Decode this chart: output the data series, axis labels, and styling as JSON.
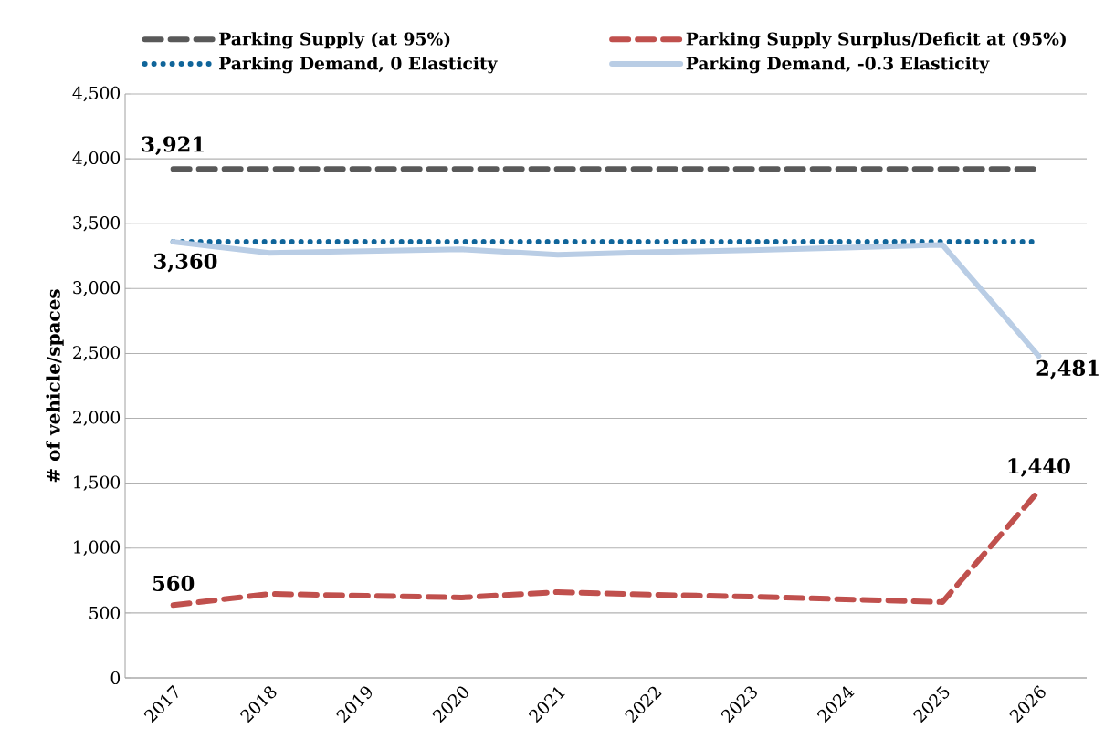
{
  "chart_data": {
    "type": "line",
    "ylabel": "# of vehicle/spaces",
    "categories": [
      "2017",
      "2018",
      "2019",
      "2020",
      "2021",
      "2022",
      "2023",
      "2024",
      "2025",
      "2026"
    ],
    "series": [
      {
        "name": "Parking Supply (at 95%)",
        "color": "#595959",
        "line_style": "dashed",
        "values": [
          3921,
          3921,
          3921,
          3921,
          3921,
          3921,
          3921,
          3921,
          3921,
          3921
        ],
        "value_labels": [
          "3,921",
          null,
          null,
          null,
          null,
          null,
          null,
          null,
          null,
          null
        ]
      },
      {
        "name": "Parking Supply Surplus/Deficit at (95%)",
        "color": "#c0504d",
        "line_style": "dashed",
        "values": [
          560,
          647,
          633,
          619,
          661,
          640,
          626,
          605,
          584,
          1440
        ],
        "value_labels": [
          "560",
          null,
          null,
          null,
          null,
          null,
          null,
          null,
          null,
          "1,440"
        ]
      },
      {
        "name": "Parking Demand, 0 Elasticity",
        "color": "#10659a",
        "line_style": "dotted",
        "values": [
          3360,
          3360,
          3360,
          3360,
          3360,
          3360,
          3360,
          3360,
          3360,
          3360
        ],
        "value_labels": [
          "3,360",
          null,
          null,
          null,
          null,
          null,
          null,
          null,
          null,
          null
        ]
      },
      {
        "name": "Parking Demand, -0.3 Elasticity",
        "color": "#b9cde5",
        "line_style": "solid",
        "values": [
          3360,
          3274,
          3288,
          3302,
          3260,
          3281,
          3295,
          3316,
          3337,
          2481
        ],
        "value_labels": [
          null,
          null,
          null,
          null,
          null,
          null,
          null,
          null,
          null,
          "2,481"
        ]
      }
    ],
    "ylim": [
      0,
      4500
    ],
    "yticks": [
      {
        "value": 0,
        "label": "0"
      },
      {
        "value": 500,
        "label": "500"
      },
      {
        "value": 1000,
        "label": "1,000"
      },
      {
        "value": 1500,
        "label": "1,500"
      },
      {
        "value": 2000,
        "label": "2,000"
      },
      {
        "value": 2500,
        "label": "2,500"
      },
      {
        "value": 3000,
        "label": "3,000"
      },
      {
        "value": 3500,
        "label": "3,500"
      },
      {
        "value": 4000,
        "label": "4,000"
      },
      {
        "value": 4500,
        "label": "4,500"
      }
    ],
    "grid": "y",
    "legend": "top",
    "marker": "none"
  }
}
